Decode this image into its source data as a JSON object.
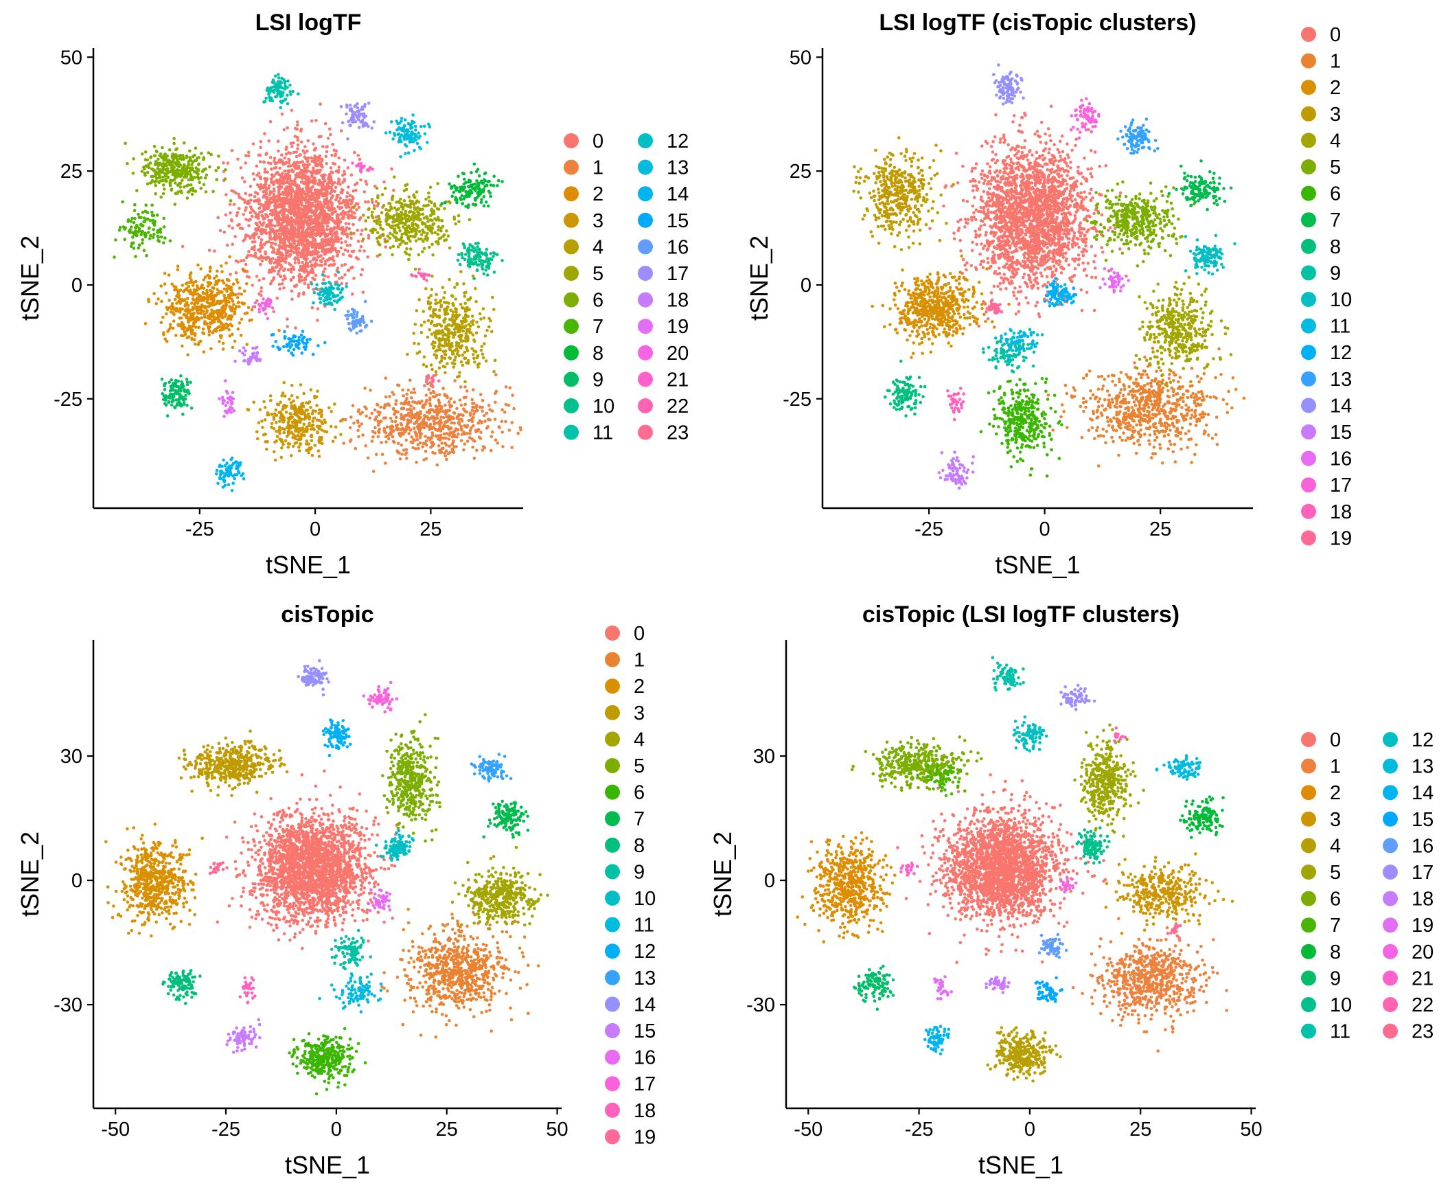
{
  "figure": {
    "background": "#ffffff"
  },
  "chart_data": [
    {
      "type": "scatter",
      "title": "LSI logTF",
      "xlabel": "tSNE_1",
      "ylabel": "tSNE_2",
      "xlim": [
        -48,
        45
      ],
      "ylim": [
        -49,
        52
      ],
      "xticks": [
        -25,
        0,
        25
      ],
      "yticks": [
        -25,
        0,
        25,
        50
      ],
      "grid": false,
      "legend": {
        "position": "right",
        "columns": 2,
        "labels": [
          "0",
          "1",
          "2",
          "3",
          "4",
          "5",
          "6",
          "7",
          "8",
          "9",
          "10",
          "11",
          "12",
          "13",
          "14",
          "15",
          "16",
          "17",
          "18",
          "19",
          "20",
          "21",
          "22",
          "23"
        ]
      },
      "clusters": [
        {
          "label": "0",
          "x": -3,
          "y": 15,
          "sx": 10,
          "sy": 12,
          "n": 2200
        },
        {
          "label": "1",
          "x": 25,
          "y": -30,
          "sx": 12,
          "sy": 6,
          "n": 650
        },
        {
          "label": "2",
          "x": -24,
          "y": -5,
          "sx": 7,
          "sy": 6,
          "n": 550
        },
        {
          "label": "3",
          "x": -4,
          "y": -30,
          "sx": 6,
          "sy": 5,
          "n": 300
        },
        {
          "label": "4",
          "x": 30,
          "y": -10,
          "sx": 6,
          "sy": 7,
          "n": 380
        },
        {
          "label": "5",
          "x": 20,
          "y": 14,
          "sx": 7,
          "sy": 5,
          "n": 380
        },
        {
          "label": "6",
          "x": -30,
          "y": 25,
          "sx": 6,
          "sy": 4,
          "n": 330
        },
        {
          "label": "7",
          "x": -37,
          "y": 12,
          "sx": 4,
          "sy": 4,
          "n": 110
        },
        {
          "label": "8",
          "x": 34,
          "y": 21,
          "sx": 4,
          "sy": 3,
          "n": 130
        },
        {
          "label": "9",
          "x": -30,
          "y": -24,
          "sx": 2.5,
          "sy": 3,
          "n": 110
        },
        {
          "label": "10",
          "x": 35,
          "y": 6,
          "sx": 3,
          "sy": 2.5,
          "n": 110
        },
        {
          "label": "11",
          "x": -8,
          "y": 43,
          "sx": 2.5,
          "sy": 2.5,
          "n": 90
        },
        {
          "label": "12",
          "x": 3,
          "y": -2,
          "sx": 2.5,
          "sy": 2.5,
          "n": 90
        },
        {
          "label": "13",
          "x": 20,
          "y": 33,
          "sx": 3,
          "sy": 3,
          "n": 90
        },
        {
          "label": "14",
          "x": -19,
          "y": -41,
          "sx": 2.5,
          "sy": 2.5,
          "n": 70
        },
        {
          "label": "15",
          "x": -5,
          "y": -13,
          "sx": 4,
          "sy": 2,
          "n": 60
        },
        {
          "label": "16",
          "x": 9,
          "y": -8,
          "sx": 2,
          "sy": 2,
          "n": 60
        },
        {
          "label": "17",
          "x": 9,
          "y": 37,
          "sx": 2.5,
          "sy": 2.5,
          "n": 70
        },
        {
          "label": "18",
          "x": -14,
          "y": -16,
          "sx": 2,
          "sy": 1.5,
          "n": 35
        },
        {
          "label": "19",
          "x": -19,
          "y": -26,
          "sx": 1.5,
          "sy": 2.5,
          "n": 35
        },
        {
          "label": "20",
          "x": -11,
          "y": -5,
          "sx": 1.5,
          "sy": 1.5,
          "n": 30
        },
        {
          "label": "21",
          "x": 10,
          "y": 26,
          "sx": 1.5,
          "sy": 1,
          "n": 20
        },
        {
          "label": "22",
          "x": 23,
          "y": 2,
          "sx": 1.2,
          "sy": 1.2,
          "n": 20
        },
        {
          "label": "23",
          "x": 25,
          "y": -21,
          "sx": 1.2,
          "sy": 1.2,
          "n": 15
        }
      ]
    },
    {
      "type": "scatter",
      "title": "LSI logTF (cisTopic clusters)",
      "xlabel": "tSNE_1",
      "ylabel": "tSNE_2",
      "xlim": [
        -48,
        45
      ],
      "ylim": [
        -49,
        52
      ],
      "xticks": [
        -25,
        0,
        25
      ],
      "yticks": [
        -25,
        0,
        25,
        50
      ],
      "grid": false,
      "legend": {
        "position": "right",
        "columns": 1,
        "labels": [
          "0",
          "1",
          "2",
          "3",
          "4",
          "5",
          "6",
          "7",
          "8",
          "9",
          "10",
          "11",
          "12",
          "13",
          "14",
          "15",
          "16",
          "17",
          "18",
          "19"
        ]
      },
      "clusters": [
        {
          "label": "0",
          "x": -3,
          "y": 15,
          "sx": 10,
          "sy": 12,
          "n": 2200
        },
        {
          "label": "1",
          "x": 22,
          "y": -27,
          "sx": 12,
          "sy": 7,
          "n": 650
        },
        {
          "label": "2",
          "x": -24,
          "y": -5,
          "sx": 7,
          "sy": 6,
          "n": 550
        },
        {
          "label": "3",
          "x": -32,
          "y": 20,
          "sx": 6,
          "sy": 7,
          "n": 400
        },
        {
          "label": "4",
          "x": 29,
          "y": -10,
          "sx": 6,
          "sy": 7,
          "n": 380
        },
        {
          "label": "5",
          "x": 20,
          "y": 14,
          "sx": 7,
          "sy": 5,
          "n": 380
        },
        {
          "label": "6",
          "x": -5,
          "y": -30,
          "sx": 5,
          "sy": 6,
          "n": 330
        },
        {
          "label": "7",
          "x": 34,
          "y": 21,
          "sx": 4,
          "sy": 3,
          "n": 130
        },
        {
          "label": "8",
          "x": -30,
          "y": -24,
          "sx": 2.5,
          "sy": 3,
          "n": 110
        },
        {
          "label": "9",
          "x": -8,
          "y": -15,
          "sx": 4,
          "sy": 3,
          "n": 90
        },
        {
          "label": "10",
          "x": 35,
          "y": 6,
          "sx": 3,
          "sy": 2.5,
          "n": 110
        },
        {
          "label": "11",
          "x": -5,
          "y": -12,
          "sx": 3,
          "sy": 2,
          "n": 60
        },
        {
          "label": "12",
          "x": 3,
          "y": -2,
          "sx": 2.5,
          "sy": 2.5,
          "n": 90
        },
        {
          "label": "13",
          "x": 20,
          "y": 32,
          "sx": 3,
          "sy": 3,
          "n": 90
        },
        {
          "label": "14",
          "x": -8,
          "y": 43,
          "sx": 2.5,
          "sy": 2.5,
          "n": 90
        },
        {
          "label": "15",
          "x": -19,
          "y": -41,
          "sx": 2.5,
          "sy": 2.5,
          "n": 70
        },
        {
          "label": "16",
          "x": 15,
          "y": 1,
          "sx": 2,
          "sy": 2,
          "n": 40
        },
        {
          "label": "17",
          "x": 9,
          "y": 37,
          "sx": 2.5,
          "sy": 2.5,
          "n": 70
        },
        {
          "label": "18",
          "x": -19,
          "y": -26,
          "sx": 1.5,
          "sy": 2.5,
          "n": 35
        },
        {
          "label": "19",
          "x": -11,
          "y": -5,
          "sx": 1.5,
          "sy": 1.5,
          "n": 30
        }
      ]
    },
    {
      "type": "scatter",
      "title": "cisTopic",
      "xlabel": "tSNE_1",
      "ylabel": "tSNE_2",
      "xlim": [
        -55,
        51
      ],
      "ylim": [
        -55,
        58
      ],
      "xticks": [
        -50,
        -25,
        0,
        25,
        50
      ],
      "yticks": [
        -30,
        0,
        30
      ],
      "grid": false,
      "legend": {
        "position": "right",
        "columns": 1,
        "labels": [
          "0",
          "1",
          "2",
          "3",
          "4",
          "5",
          "6",
          "7",
          "8",
          "9",
          "10",
          "11",
          "12",
          "13",
          "14",
          "15",
          "16",
          "17",
          "18",
          "19"
        ]
      },
      "clusters": [
        {
          "label": "0",
          "x": -6,
          "y": 3,
          "sx": 10,
          "sy": 10,
          "n": 2200
        },
        {
          "label": "1",
          "x": 27,
          "y": -22,
          "sx": 9,
          "sy": 8,
          "n": 650
        },
        {
          "label": "2",
          "x": -41,
          "y": -1,
          "sx": 6,
          "sy": 8,
          "n": 550
        },
        {
          "label": "3",
          "x": -24,
          "y": 28,
          "sx": 8,
          "sy": 4,
          "n": 400
        },
        {
          "label": "4",
          "x": 37,
          "y": -4,
          "sx": 6,
          "sy": 5,
          "n": 380
        },
        {
          "label": "5",
          "x": 17,
          "y": 24,
          "sx": 4,
          "sy": 8,
          "n": 380
        },
        {
          "label": "6",
          "x": -3,
          "y": -43,
          "sx": 5,
          "sy": 4,
          "n": 330
        },
        {
          "label": "7",
          "x": 39,
          "y": 15,
          "sx": 3,
          "sy": 3,
          "n": 130
        },
        {
          "label": "8",
          "x": -35,
          "y": -25,
          "sx": 3,
          "sy": 3,
          "n": 110
        },
        {
          "label": "9",
          "x": 3,
          "y": -17,
          "sx": 3,
          "sy": 3,
          "n": 90
        },
        {
          "label": "10",
          "x": 14,
          "y": 8,
          "sx": 2.5,
          "sy": 2.5,
          "n": 110
        },
        {
          "label": "11",
          "x": 5,
          "y": -27,
          "sx": 4,
          "sy": 3,
          "n": 90
        },
        {
          "label": "12",
          "x": 0,
          "y": 35,
          "sx": 2.5,
          "sy": 2.5,
          "n": 90
        },
        {
          "label": "13",
          "x": 35,
          "y": 27,
          "sx": 3,
          "sy": 2,
          "n": 90
        },
        {
          "label": "14",
          "x": -5,
          "y": 49,
          "sx": 2.5,
          "sy": 2.5,
          "n": 90
        },
        {
          "label": "15",
          "x": -21,
          "y": -38,
          "sx": 2.5,
          "sy": 2.5,
          "n": 70
        },
        {
          "label": "16",
          "x": 10,
          "y": -5,
          "sx": 2,
          "sy": 2,
          "n": 50
        },
        {
          "label": "17",
          "x": 10,
          "y": 44,
          "sx": 2.5,
          "sy": 2,
          "n": 60
        },
        {
          "label": "18",
          "x": -20,
          "y": -26,
          "sx": 1.2,
          "sy": 2,
          "n": 30
        },
        {
          "label": "19",
          "x": -27,
          "y": 3,
          "sx": 1.5,
          "sy": 1.5,
          "n": 20
        }
      ]
    },
    {
      "type": "scatter",
      "title": "cisTopic (LSI logTF clusters)",
      "xlabel": "tSNE_1",
      "ylabel": "tSNE_2",
      "xlim": [
        -55,
        51
      ],
      "ylim": [
        -55,
        58
      ],
      "xticks": [
        -50,
        -25,
        0,
        25,
        50
      ],
      "yticks": [
        -30,
        0,
        30
      ],
      "grid": false,
      "legend": {
        "position": "right",
        "columns": 2,
        "labels": [
          "0",
          "1",
          "2",
          "3",
          "4",
          "5",
          "6",
          "7",
          "8",
          "9",
          "10",
          "11",
          "12",
          "13",
          "14",
          "15",
          "16",
          "17",
          "18",
          "19",
          "20",
          "21",
          "22",
          "23"
        ]
      },
      "clusters": [
        {
          "label": "0",
          "x": -6,
          "y": 3,
          "sx": 10,
          "sy": 10,
          "n": 2200
        },
        {
          "label": "1",
          "x": 27,
          "y": -24,
          "sx": 9,
          "sy": 7,
          "n": 650
        },
        {
          "label": "2",
          "x": -41,
          "y": -1,
          "sx": 6,
          "sy": 8,
          "n": 550
        },
        {
          "label": "3",
          "x": 30,
          "y": -3,
          "sx": 8,
          "sy": 5,
          "n": 350
        },
        {
          "label": "4",
          "x": -2,
          "y": -42,
          "sx": 5,
          "sy": 4,
          "n": 300
        },
        {
          "label": "5",
          "x": 17,
          "y": 24,
          "sx": 4,
          "sy": 8,
          "n": 380
        },
        {
          "label": "6",
          "x": -25,
          "y": 28,
          "sx": 8,
          "sy": 4,
          "n": 380
        },
        {
          "label": "7",
          "x": -20,
          "y": 25,
          "sx": 4,
          "sy": 3,
          "n": 60
        },
        {
          "label": "8",
          "x": 39,
          "y": 15,
          "sx": 3,
          "sy": 3,
          "n": 130
        },
        {
          "label": "9",
          "x": -35,
          "y": -25,
          "sx": 3,
          "sy": 3,
          "n": 110
        },
        {
          "label": "10",
          "x": 14,
          "y": 8,
          "sx": 2.5,
          "sy": 2.5,
          "n": 110
        },
        {
          "label": "11",
          "x": -5,
          "y": 49,
          "sx": 2.5,
          "sy": 2.5,
          "n": 90
        },
        {
          "label": "12",
          "x": 0,
          "y": 35,
          "sx": 2.5,
          "sy": 2.5,
          "n": 90
        },
        {
          "label": "13",
          "x": 35,
          "y": 27,
          "sx": 3,
          "sy": 2,
          "n": 90
        },
        {
          "label": "14",
          "x": -21,
          "y": -38,
          "sx": 2.5,
          "sy": 2.5,
          "n": 70
        },
        {
          "label": "15",
          "x": 4,
          "y": -27,
          "sx": 2.5,
          "sy": 2.5,
          "n": 60
        },
        {
          "label": "16",
          "x": 5,
          "y": -16,
          "sx": 2,
          "sy": 2,
          "n": 60
        },
        {
          "label": "17",
          "x": 10,
          "y": 44,
          "sx": 2.5,
          "sy": 2,
          "n": 60
        },
        {
          "label": "18",
          "x": -7,
          "y": -25,
          "sx": 2,
          "sy": 1.5,
          "n": 40
        },
        {
          "label": "19",
          "x": -20,
          "y": -26,
          "sx": 1.2,
          "sy": 2,
          "n": 30
        },
        {
          "label": "20",
          "x": 8,
          "y": -1,
          "sx": 1.5,
          "sy": 1.5,
          "n": 20
        },
        {
          "label": "21",
          "x": -27,
          "y": 3,
          "sx": 1.5,
          "sy": 1.5,
          "n": 20
        },
        {
          "label": "22",
          "x": 20,
          "y": 35,
          "sx": 1.2,
          "sy": 1.2,
          "n": 15
        },
        {
          "label": "23",
          "x": 33,
          "y": -12,
          "sx": 1.2,
          "sy": 1.2,
          "n": 15
        }
      ]
    }
  ]
}
